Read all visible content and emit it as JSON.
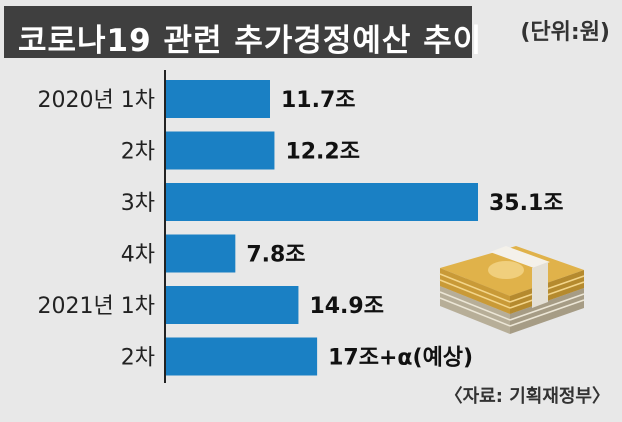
{
  "header": {
    "title": "코로나19 관련 추가경정예산 추이",
    "unit": "(단위:원)"
  },
  "source": "〈자료: 기획재정부〉",
  "colors": {
    "bar": "#1a80c4",
    "title_bg": "#3f3f3f",
    "background": "#e8e8e8"
  },
  "chart_data": {
    "type": "bar",
    "orientation": "horizontal",
    "categories": [
      "2020년 1차",
      "2차",
      "3차",
      "4차",
      "2021년 1차",
      "2차"
    ],
    "values": [
      11.7,
      12.2,
      35.1,
      7.8,
      14.9,
      17
    ],
    "value_labels": [
      "11.7조",
      "12.2조",
      "35.1조",
      "7.8조",
      "14.9조",
      "17조+α(예상)"
    ],
    "xlim": [
      0,
      35.1
    ],
    "grid": false,
    "legend": "none"
  }
}
